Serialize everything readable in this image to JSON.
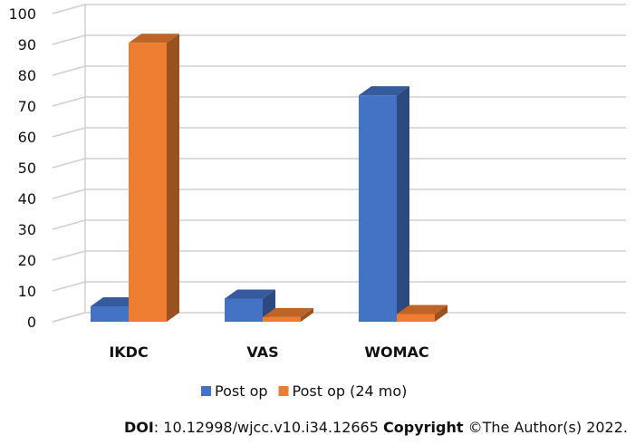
{
  "chart_data": {
    "type": "bar",
    "categories": [
      "IKDC",
      "VAS",
      "WOMAC"
    ],
    "series": [
      {
        "name": "Post op",
        "values": [
          5,
          7.5,
          73.5
        ],
        "color": "#4472C4"
      },
      {
        "name": "Post op (24 mo)",
        "values": [
          90.5,
          1.5,
          2.5
        ],
        "color": "#ED7D31"
      }
    ],
    "ylim": [
      0,
      100
    ],
    "yticks": [
      "0",
      "10",
      "20",
      "30",
      "40",
      "50",
      "60",
      "70",
      "80",
      "90",
      "100"
    ],
    "grid": true,
    "legend_position": "bottom",
    "title": "",
    "xlabel": "",
    "ylabel": ""
  },
  "footer": {
    "doi_label": "DOI",
    "doi_value": ": 10.12998/wjcc.v10.i34.12665 ",
    "copyright_label": "Copyright",
    "copyright_value": " ©The Author(s) 2022."
  }
}
